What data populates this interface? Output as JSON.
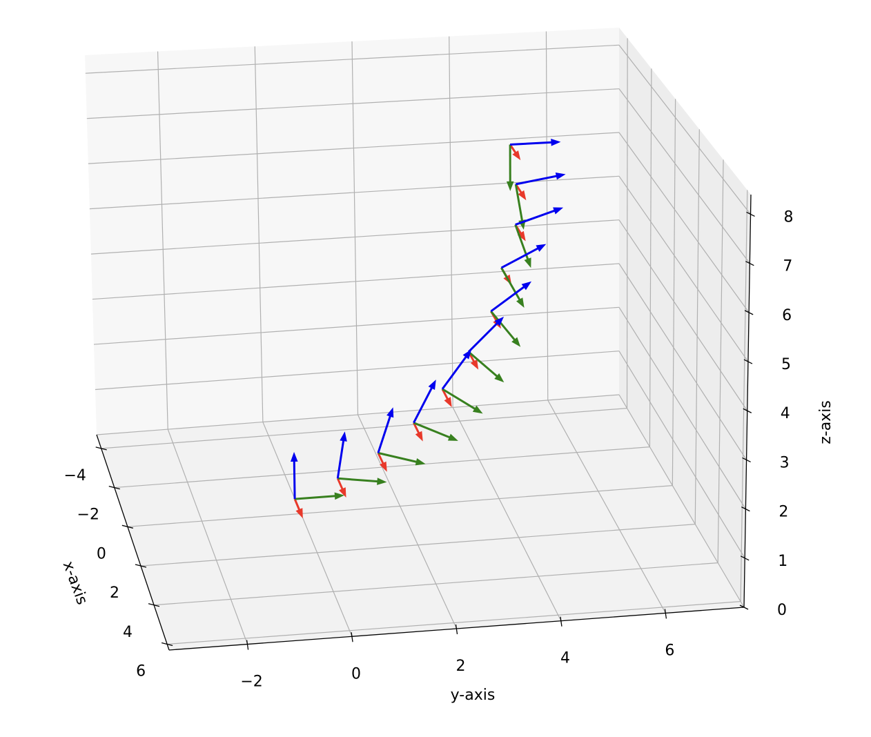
{
  "chart_data": {
    "type": "quiver3d",
    "xlabel": "x-axis",
    "ylabel": "y-axis",
    "zlabel": "z-axis",
    "x": [
      0,
      0,
      0,
      0,
      0,
      0,
      0,
      0,
      0,
      0,
      0
    ],
    "y": [
      -0.12,
      0.75,
      1.57,
      2.29,
      2.87,
      3.4,
      3.85,
      4.06,
      4.34,
      4.35,
      4.24
    ],
    "z": [
      0.32,
      0.69,
      1.17,
      1.76,
      2.44,
      3.2,
      4.04,
      4.96,
      5.87,
      6.74,
      7.6
    ],
    "series": [
      {
        "color": "#e8392b",
        "u": [
          1,
          1,
          1,
          1,
          1,
          1,
          1,
          1,
          1,
          1,
          1
        ],
        "v": [
          0,
          0,
          0,
          0,
          0,
          0,
          0,
          0,
          0,
          0,
          0
        ],
        "w": [
          0,
          0,
          0,
          0,
          0,
          0,
          0,
          0,
          0,
          0,
          0
        ]
      },
      {
        "color": "#38801f",
        "u": [
          0,
          0,
          0,
          0,
          0,
          0,
          0,
          0,
          0,
          0,
          0
        ],
        "v": [
          1,
          0.988,
          0.951,
          0.891,
          0.809,
          0.707,
          0.588,
          0.454,
          0.309,
          0.156,
          0
        ],
        "w": [
          0,
          -0.156,
          -0.309,
          -0.454,
          -0.588,
          -0.707,
          -0.809,
          -0.891,
          -0.951,
          -0.988,
          -1
        ]
      },
      {
        "color": "#0000ee",
        "u": [
          0,
          0,
          0,
          0,
          0,
          0,
          0,
          0,
          0,
          0,
          0
        ],
        "v": [
          0,
          0.156,
          0.309,
          0.454,
          0.588,
          0.707,
          0.809,
          0.891,
          0.951,
          0.988,
          1
        ],
        "w": [
          1,
          0.988,
          0.951,
          0.891,
          0.809,
          0.707,
          0.588,
          0.454,
          0.309,
          0.156,
          0
        ]
      }
    ],
    "xlim": [
      -4.7,
      6.3
    ],
    "ylim": [
      -3.5,
      7.5
    ],
    "zlim": [
      0,
      8.4
    ],
    "xticks": [
      {
        "value": -4,
        "label": "−4"
      },
      {
        "value": -2,
        "label": "−2"
      },
      0,
      2,
      4,
      6
    ],
    "yticks": [
      {
        "value": -2,
        "label": "−2"
      },
      0,
      2,
      4,
      6
    ],
    "zticks": [
      0,
      1,
      2,
      3,
      4,
      5,
      6,
      7,
      8
    ],
    "grid": true
  }
}
